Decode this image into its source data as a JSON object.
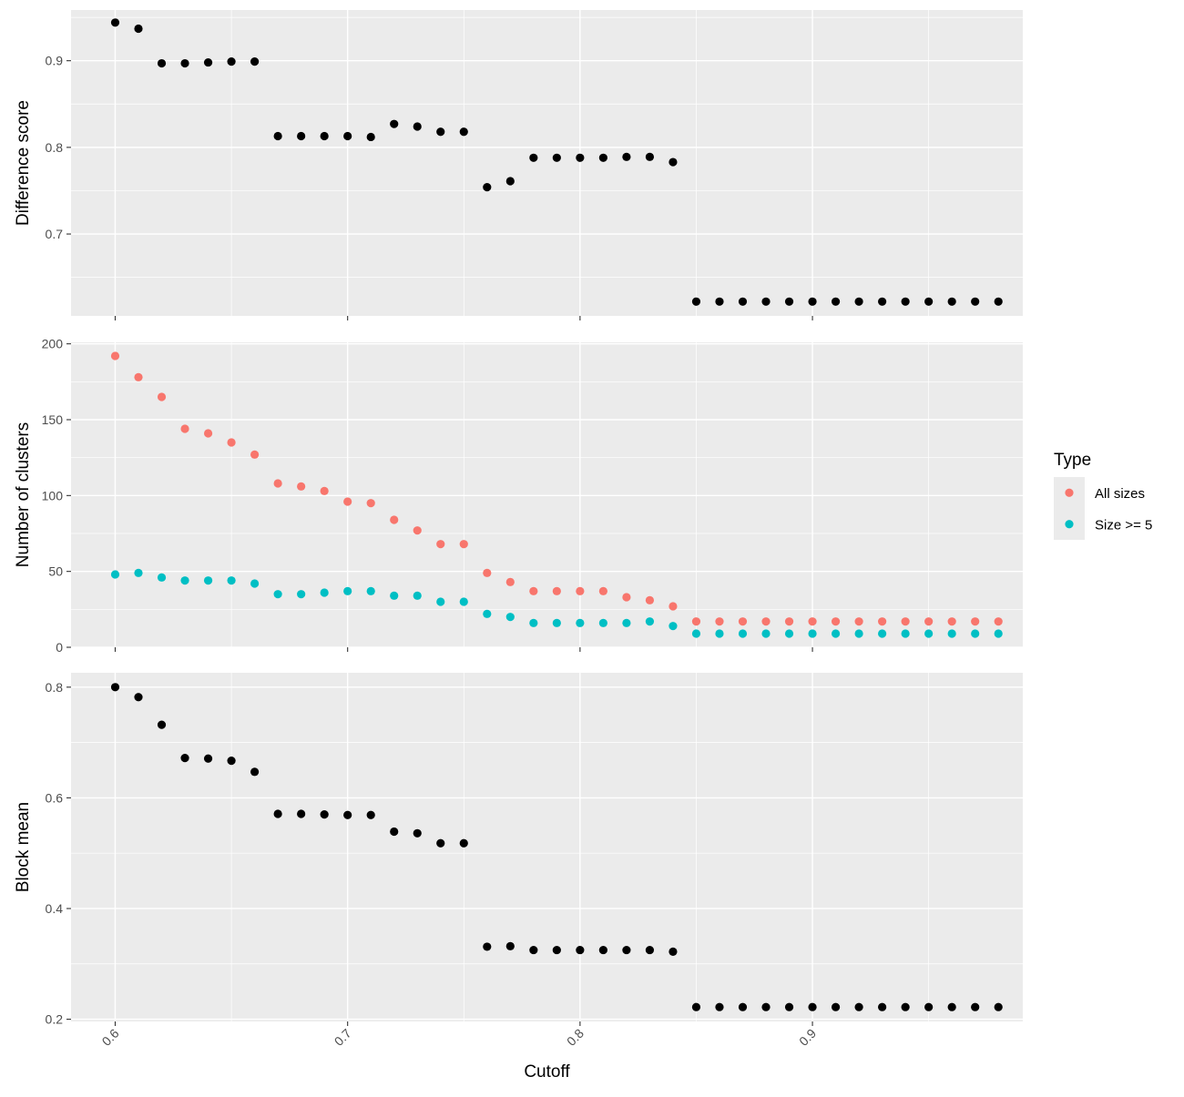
{
  "chart_data": {
    "type": "scatter",
    "x_label": "Cutoff",
    "x_ticks": [
      0.6,
      0.7,
      0.8,
      0.9
    ],
    "x_tick_labels": [
      "0.6",
      "0.7",
      "0.8",
      "0.9"
    ],
    "x_range": [
      0.581,
      0.9905
    ],
    "x": [
      0.6,
      0.61,
      0.62,
      0.63,
      0.64,
      0.65,
      0.66,
      0.67,
      0.68,
      0.69,
      0.7,
      0.71,
      0.72,
      0.73,
      0.74,
      0.75,
      0.76,
      0.77,
      0.78,
      0.79,
      0.8,
      0.81,
      0.82,
      0.83,
      0.84,
      0.85,
      0.86,
      0.87,
      0.88,
      0.89,
      0.9,
      0.91,
      0.92,
      0.93,
      0.94,
      0.95,
      0.96,
      0.97,
      0.98
    ],
    "legend": {
      "title": "Type",
      "entries": [
        {
          "label": "All sizes",
          "color": "#F8766D"
        },
        {
          "label": "Size >= 5",
          "color": "#00BFC4"
        }
      ],
      "position": "right"
    },
    "panels": [
      {
        "id": "difference",
        "ylabel": "Difference score",
        "y_range": [
          0.6055,
          0.9585
        ],
        "y_ticks": [
          0.7,
          0.8,
          0.9
        ],
        "y_tick_labels": [
          "0.7",
          "0.8",
          "0.9"
        ],
        "series": [
          {
            "color": "#000000",
            "values": [
              0.944,
              0.937,
              0.897,
              0.897,
              0.898,
              0.899,
              0.899,
              0.813,
              0.813,
              0.813,
              0.813,
              0.812,
              0.827,
              0.824,
              0.818,
              0.818,
              0.754,
              0.761,
              0.788,
              0.788,
              0.788,
              0.788,
              0.789,
              0.789,
              0.783,
              0.622,
              0.622,
              0.622,
              0.622,
              0.622,
              0.622,
              0.622,
              0.622,
              0.622,
              0.622,
              0.622,
              0.622,
              0.622,
              0.622
            ]
          }
        ]
      },
      {
        "id": "clusters",
        "ylabel": "Number of clusters",
        "y_range": [
          0,
          201
        ],
        "y_ticks": [
          0,
          50,
          100,
          150,
          200
        ],
        "y_tick_labels": [
          "0",
          "50",
          "100",
          "150",
          "200"
        ],
        "series": [
          {
            "name": "All sizes",
            "color": "#F8766D",
            "values": [
              192,
              178,
              165,
              144,
              141,
              135,
              127,
              108,
              106,
              103,
              96,
              95,
              84,
              77,
              68,
              68,
              49,
              43,
              37,
              37,
              37,
              37,
              33,
              31,
              27,
              17,
              17,
              17,
              17,
              17,
              17,
              17,
              17,
              17,
              17,
              17,
              17,
              17,
              17
            ]
          },
          {
            "name": "Size >= 5",
            "color": "#00BFC4",
            "values": [
              48,
              49,
              46,
              44,
              44,
              44,
              42,
              35,
              35,
              36,
              37,
              37,
              34,
              34,
              30,
              30,
              22,
              20,
              16,
              16,
              16,
              16,
              16,
              17,
              14,
              9,
              9,
              9,
              9,
              9,
              9,
              9,
              9,
              9,
              9,
              9,
              9,
              9,
              9
            ]
          }
        ]
      },
      {
        "id": "blockmean",
        "ylabel": "Block mean",
        "y_range": [
          0.196,
          0.826
        ],
        "y_ticks": [
          0.2,
          0.4,
          0.6,
          0.8
        ],
        "y_tick_labels": [
          "0.2",
          "0.4",
          "0.6",
          "0.8"
        ],
        "series": [
          {
            "color": "#000000",
            "values": [
              0.8,
              0.782,
              0.732,
              0.672,
              0.671,
              0.667,
              0.647,
              0.571,
              0.571,
              0.57,
              0.569,
              0.569,
              0.539,
              0.536,
              0.518,
              0.518,
              0.331,
              0.332,
              0.325,
              0.325,
              0.325,
              0.325,
              0.325,
              0.325,
              0.322,
              0.222,
              0.222,
              0.222,
              0.222,
              0.222,
              0.222,
              0.222,
              0.222,
              0.222,
              0.222,
              0.222,
              0.222,
              0.222,
              0.222
            ]
          }
        ]
      }
    ],
    "panel_background": "#EBEBEB",
    "grid": true
  }
}
